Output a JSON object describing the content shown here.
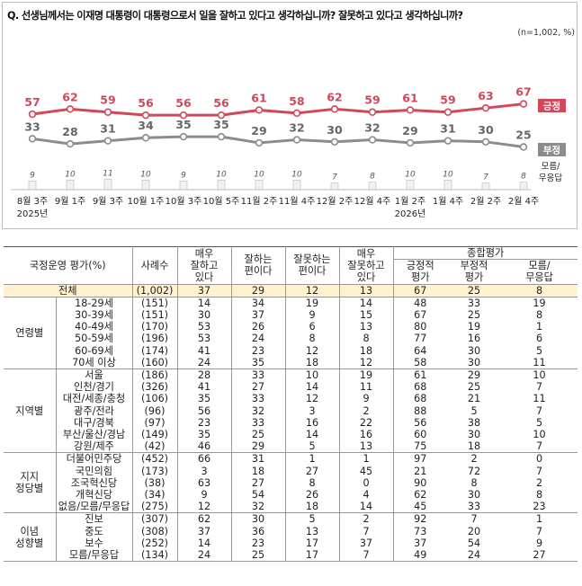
{
  "question": "Q. 선생님께서는 이재명 대통령이 대통령으로서 일을 잘하고 있다고 생각하십니까? 잘못하고 있다고 생각하십니까?",
  "note": "(n=1,002, %)",
  "chart_data": {
    "type": "line",
    "categories": [
      "8월 3주",
      "9월 1주",
      "9월 3주",
      "10월 1주",
      "10월 3주",
      "10월 5주",
      "11월 2주",
      "11월 4주",
      "12월 2주",
      "12월 4주",
      "1월 2주",
      "1월 4주",
      "2월 2주",
      "2월 4주"
    ],
    "year_labels": [
      {
        "text": "2025년",
        "index": 0
      },
      {
        "text": "2026년",
        "index": 10
      }
    ],
    "series": [
      {
        "name": "긍정",
        "color": "#d0485a",
        "values": [
          57,
          62,
          59,
          56,
          56,
          56,
          61,
          58,
          62,
          59,
          61,
          59,
          63,
          67
        ]
      },
      {
        "name": "부정",
        "color": "#8c8c8c",
        "values": [
          33,
          28,
          31,
          34,
          35,
          35,
          29,
          32,
          30,
          32,
          29,
          31,
          30,
          25
        ]
      },
      {
        "name": "모름/\n무응답",
        "color": "#ebebeb",
        "values": [
          9,
          10,
          11,
          10,
          9,
          10,
          10,
          10,
          7,
          8,
          10,
          10,
          7,
          8
        ]
      }
    ],
    "legend_badges": [
      {
        "text": "긍정",
        "color": "#d0485a"
      },
      {
        "text": "부정",
        "color": "#8c8c8c"
      }
    ],
    "dk_label_lines": [
      "모름/",
      "무응답"
    ]
  },
  "table": {
    "header": {
      "col1": "국정운영 평가(%)",
      "col2": "사례수",
      "c3": [
        "매우",
        "잘하고",
        "있다"
      ],
      "c4": [
        "잘하는",
        "편이다"
      ],
      "c5": [
        "잘못하는",
        "편이다"
      ],
      "c6": [
        "매우",
        "잘못하고",
        "있다"
      ],
      "group": "종합평가",
      "c7": [
        "긍정적",
        "평가"
      ],
      "c8": [
        "부정적",
        "평가"
      ],
      "c9": [
        "모름/",
        "무응답"
      ]
    },
    "total": {
      "label": "전체",
      "n": "(1,002)",
      "v": [
        "37",
        "29",
        "12",
        "13",
        "67",
        "25",
        "8"
      ]
    },
    "groups": [
      {
        "name": [
          "연령별"
        ],
        "rows": [
          {
            "label": "18-29세",
            "n": "(151)",
            "v": [
              "14",
              "34",
              "19",
              "14",
              "48",
              "33",
              "19"
            ]
          },
          {
            "label": "30-39세",
            "n": "(151)",
            "v": [
              "30",
              "37",
              "9",
              "15",
              "67",
              "25",
              "8"
            ]
          },
          {
            "label": "40-49세",
            "n": "(170)",
            "v": [
              "53",
              "26",
              "6",
              "13",
              "80",
              "19",
              "1"
            ]
          },
          {
            "label": "50-59세",
            "n": "(196)",
            "v": [
              "53",
              "24",
              "8",
              "8",
              "77",
              "16",
              "6"
            ]
          },
          {
            "label": "60-69세",
            "n": "(174)",
            "v": [
              "41",
              "23",
              "12",
              "18",
              "64",
              "30",
              "5"
            ]
          },
          {
            "label": "70세 이상",
            "n": "(160)",
            "v": [
              "24",
              "35",
              "18",
              "12",
              "58",
              "30",
              "11"
            ]
          }
        ]
      },
      {
        "name": [
          "지역별"
        ],
        "rows": [
          {
            "label": "서울",
            "n": "(186)",
            "v": [
              "28",
              "33",
              "10",
              "19",
              "61",
              "29",
              "10"
            ]
          },
          {
            "label": "인천/경기",
            "n": "(326)",
            "v": [
              "41",
              "27",
              "14",
              "11",
              "68",
              "25",
              "7"
            ]
          },
          {
            "label": "대전/세종/충청",
            "n": "(106)",
            "v": [
              "35",
              "33",
              "12",
              "9",
              "68",
              "21",
              "11"
            ]
          },
          {
            "label": "광주/전라",
            "n": "(96)",
            "v": [
              "56",
              "32",
              "3",
              "2",
              "88",
              "5",
              "7"
            ]
          },
          {
            "label": "대구/경북",
            "n": "(97)",
            "v": [
              "23",
              "33",
              "16",
              "22",
              "56",
              "38",
              "5"
            ]
          },
          {
            "label": "부산/울산/경남",
            "n": "(149)",
            "v": [
              "35",
              "25",
              "14",
              "16",
              "60",
              "30",
              "10"
            ]
          },
          {
            "label": "강원/제주",
            "n": "(42)",
            "v": [
              "46",
              "29",
              "5",
              "13",
              "75",
              "18",
              "7"
            ]
          }
        ]
      },
      {
        "name": [
          "지지",
          "정당별"
        ],
        "rows": [
          {
            "label": "더불어민주당",
            "n": "(452)",
            "v": [
              "66",
              "31",
              "1",
              "1",
              "97",
              "2",
              "0"
            ]
          },
          {
            "label": "국민의힘",
            "n": "(173)",
            "v": [
              "3",
              "18",
              "27",
              "45",
              "21",
              "72",
              "7"
            ]
          },
          {
            "label": "조국혁신당",
            "n": "(38)",
            "v": [
              "63",
              "27",
              "8",
              "0",
              "90",
              "8",
              "2"
            ]
          },
          {
            "label": "개혁신당",
            "n": "(34)",
            "v": [
              "9",
              "54",
              "26",
              "4",
              "62",
              "30",
              "8"
            ]
          },
          {
            "label": "없음/모름/무응답",
            "n": "(275)",
            "v": [
              "12",
              "32",
              "18",
              "14",
              "45",
              "33",
              "23"
            ]
          }
        ]
      },
      {
        "name": [
          "이념",
          "성향별"
        ],
        "rows": [
          {
            "label": "진보",
            "n": "(307)",
            "v": [
              "62",
              "30",
              "5",
              "2",
              "92",
              "7",
              "1"
            ]
          },
          {
            "label": "중도",
            "n": "(308)",
            "v": [
              "37",
              "36",
              "13",
              "7",
              "73",
              "20",
              "7"
            ]
          },
          {
            "label": "보수",
            "n": "(252)",
            "v": [
              "14",
              "23",
              "17",
              "37",
              "37",
              "54",
              "9"
            ]
          },
          {
            "label": "모름/무응답",
            "n": "(134)",
            "v": [
              "24",
              "25",
              "17",
              "7",
              "49",
              "24",
              "27"
            ]
          }
        ]
      }
    ]
  }
}
